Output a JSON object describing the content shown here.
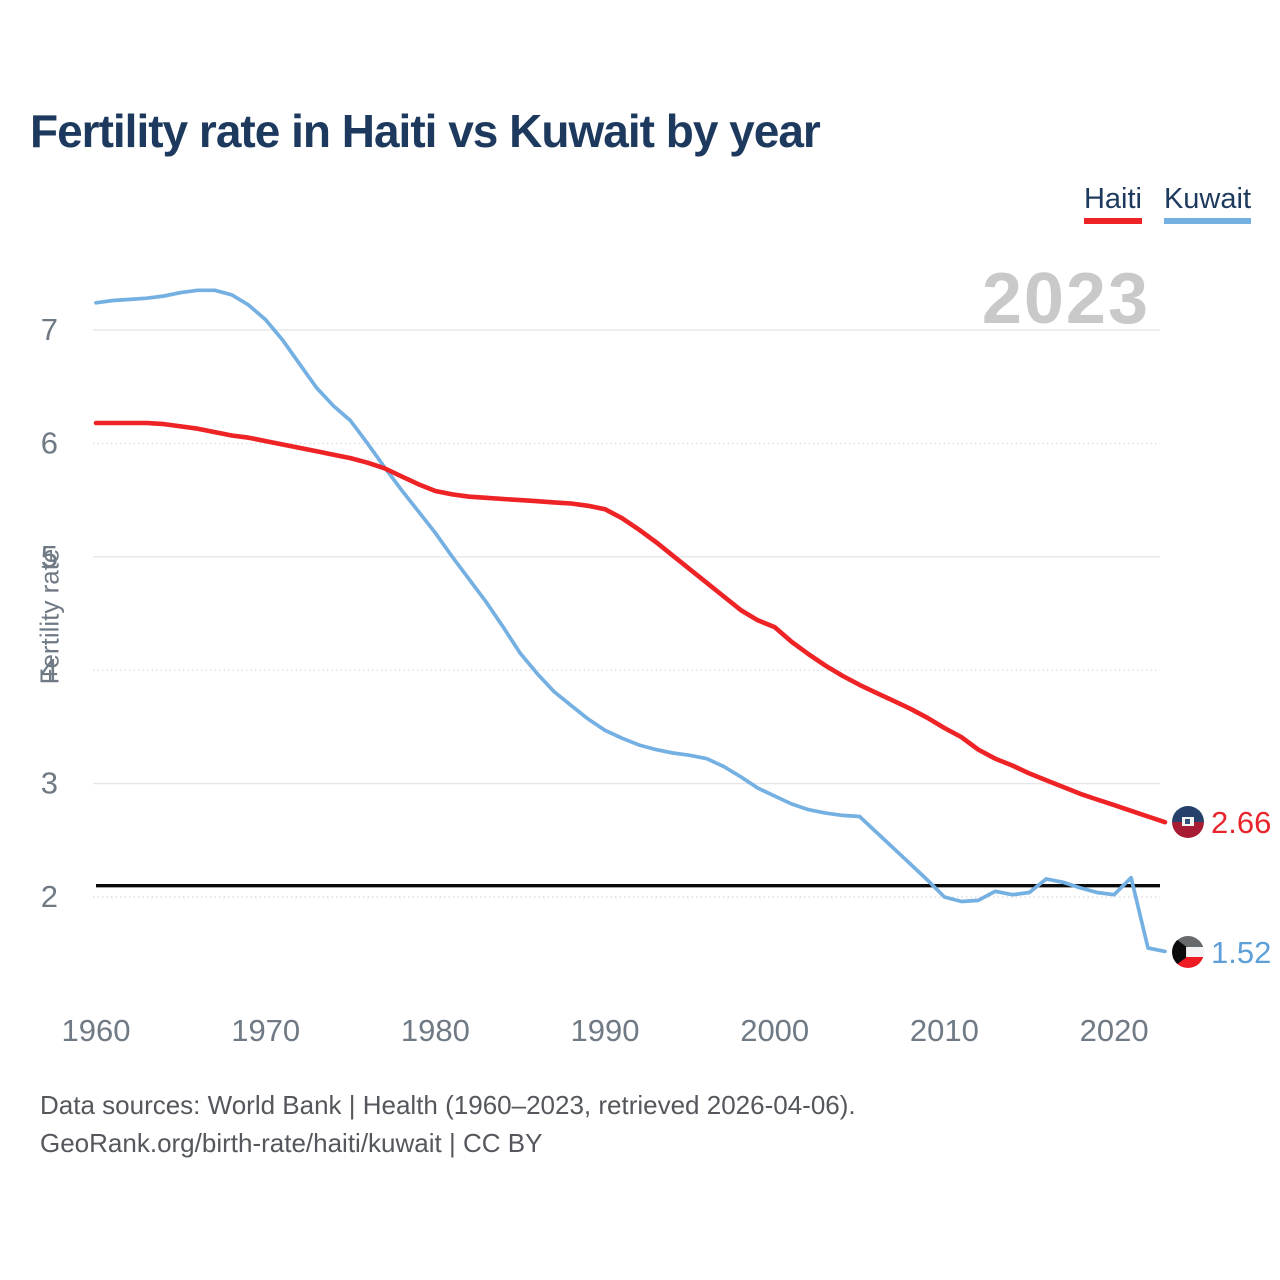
{
  "header": {
    "title": "Fertility rate in Haiti vs Kuwait by year"
  },
  "legend": [
    {
      "label": "Haiti",
      "color": "#ee2326"
    },
    {
      "label": "Kuwait",
      "color": "#74b0e2"
    }
  ],
  "watermark": {
    "text": "2023"
  },
  "end_labels": [
    {
      "series": "Haiti",
      "value": "2.66",
      "flag_icon": "haiti-flag-icon"
    },
    {
      "series": "Kuwait",
      "value": "1.52",
      "flag_icon": "kuwait-flag-icon"
    }
  ],
  "footer": {
    "line1": "Data sources: World Bank | Health (1960–2023, retrieved 2026-04-06).",
    "line2": "GeoRank.org/birth-rate/haiti/kuwait | CC BY"
  },
  "chart_data": {
    "type": "line",
    "title": "Fertility rate in Haiti vs Kuwait by year",
    "xlabel": "",
    "ylabel": "Fertility rate",
    "xlim": [
      1960,
      2023
    ],
    "ylim": [
      1.3,
      7.6
    ],
    "xticks": [
      1960,
      1970,
      1980,
      1990,
      2000,
      2010,
      2020
    ],
    "yticks": [
      2,
      3,
      4,
      5,
      6,
      7
    ],
    "grid": "horizontal",
    "legend_position": "top-right",
    "reference_line": {
      "value": 2.1,
      "color": "#0a0a0a",
      "label": ""
    },
    "x": [
      1960,
      1961,
      1962,
      1963,
      1964,
      1965,
      1966,
      1967,
      1968,
      1969,
      1970,
      1971,
      1972,
      1973,
      1974,
      1975,
      1976,
      1977,
      1978,
      1979,
      1980,
      1981,
      1982,
      1983,
      1984,
      1985,
      1986,
      1987,
      1988,
      1989,
      1990,
      1991,
      1992,
      1993,
      1994,
      1995,
      1996,
      1997,
      1998,
      1999,
      2000,
      2001,
      2002,
      2003,
      2004,
      2005,
      2006,
      2007,
      2008,
      2009,
      2010,
      2011,
      2012,
      2013,
      2014,
      2015,
      2016,
      2017,
      2018,
      2019,
      2020,
      2021,
      2022,
      2023
    ],
    "series": [
      {
        "name": "Haiti",
        "color": "#ee2326",
        "last_value": 2.66,
        "values": [
          6.18,
          6.18,
          6.18,
          6.18,
          6.17,
          6.15,
          6.13,
          6.1,
          6.07,
          6.05,
          6.02,
          5.99,
          5.96,
          5.93,
          5.9,
          5.87,
          5.83,
          5.78,
          5.71,
          5.64,
          5.58,
          5.55,
          5.53,
          5.52,
          5.51,
          5.5,
          5.49,
          5.48,
          5.47,
          5.45,
          5.42,
          5.34,
          5.24,
          5.13,
          5.01,
          4.89,
          4.77,
          4.65,
          4.53,
          4.44,
          4.38,
          4.25,
          4.14,
          4.04,
          3.95,
          3.87,
          3.8,
          3.73,
          3.66,
          3.58,
          3.49,
          3.41,
          3.3,
          3.22,
          3.16,
          3.09,
          3.03,
          2.97,
          2.91,
          2.86,
          2.81,
          2.76,
          2.71,
          2.66
        ]
      },
      {
        "name": "Kuwait",
        "color": "#74b0e2",
        "last_value": 1.52,
        "values": [
          7.24,
          7.26,
          7.27,
          7.28,
          7.3,
          7.33,
          7.35,
          7.35,
          7.31,
          7.22,
          7.09,
          6.91,
          6.7,
          6.49,
          6.33,
          6.2,
          6.0,
          5.79,
          5.59,
          5.4,
          5.21,
          5.0,
          4.8,
          4.6,
          4.38,
          4.15,
          3.97,
          3.81,
          3.69,
          3.57,
          3.47,
          3.4,
          3.34,
          3.3,
          3.27,
          3.25,
          3.22,
          3.15,
          3.06,
          2.96,
          2.89,
          2.82,
          2.77,
          2.74,
          2.72,
          2.71,
          2.57,
          2.43,
          2.29,
          2.15,
          2.0,
          1.96,
          1.97,
          2.05,
          2.02,
          2.04,
          2.16,
          2.13,
          2.08,
          2.04,
          2.02,
          2.17,
          1.55,
          1.52
        ]
      }
    ]
  }
}
